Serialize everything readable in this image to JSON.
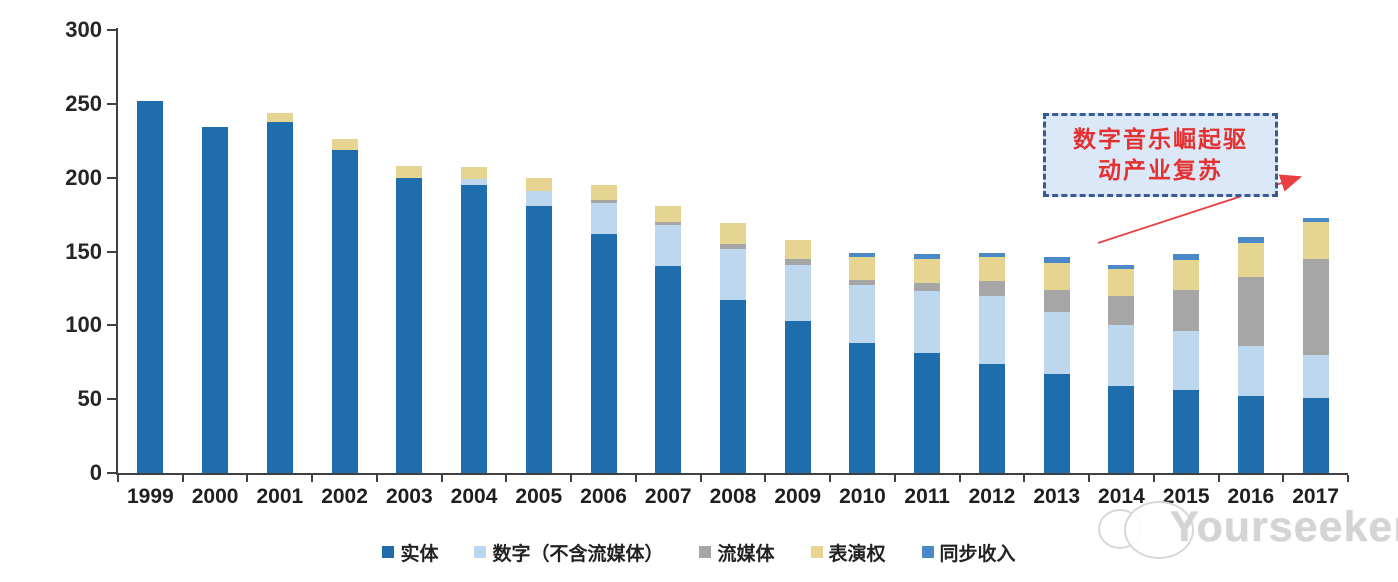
{
  "watermark": {
    "text": "Yourseeker",
    "logo_icon": "chat-bubbles-logo"
  },
  "annotation": {
    "line1": "数字音乐崛起驱",
    "line2": "动产业复苏",
    "text_color": "#e43030",
    "box_fill": "#dbe8f7",
    "box_border_color": "#3a5a96",
    "arrow_color": "#e84040"
  },
  "chart_data": {
    "type": "bar",
    "stacked": true,
    "title": "",
    "xlabel": "",
    "ylabel": "",
    "ylim": [
      0,
      300
    ],
    "yticks": [
      0,
      50,
      100,
      150,
      200,
      250,
      300
    ],
    "grid": false,
    "legend_position": "bottom",
    "categories": [
      "1999",
      "2000",
      "2001",
      "2002",
      "2003",
      "2004",
      "2005",
      "2006",
      "2007",
      "2008",
      "2009",
      "2010",
      "2011",
      "2012",
      "2013",
      "2014",
      "2015",
      "2016",
      "2017"
    ],
    "series": [
      {
        "name": "实体",
        "color": "#1f6dad",
        "values": [
          252,
          234,
          238,
          219,
          200,
          195,
          181,
          162,
          140,
          117,
          103,
          88,
          81,
          74,
          67,
          59,
          56,
          52,
          51
        ]
      },
      {
        "name": "数字（不含流媒体）",
        "color": "#bdd7ee",
        "values": [
          0,
          0,
          0,
          0,
          0,
          4,
          10,
          21,
          28,
          35,
          38,
          39,
          42,
          46,
          42,
          41,
          40,
          34,
          29
        ]
      },
      {
        "name": "流媒体",
        "color": "#a6a6a6",
        "values": [
          0,
          0,
          0,
          0,
          0,
          0,
          0,
          2,
          2,
          3,
          4,
          4,
          6,
          10,
          15,
          20,
          28,
          47,
          65
        ]
      },
      {
        "name": "表演权",
        "color": "#e6d491",
        "values": [
          0,
          0,
          6,
          7,
          8,
          8,
          9,
          10,
          11,
          14,
          13,
          15,
          16,
          16,
          18,
          18,
          20,
          23,
          25
        ]
      },
      {
        "name": "同步收入",
        "color": "#4a89c8",
        "values": [
          0,
          0,
          0,
          0,
          0,
          0,
          0,
          0,
          0,
          0,
          0,
          3,
          3,
          3,
          4,
          3,
          4,
          4,
          3
        ]
      }
    ],
    "totals": [
      252,
      234,
      244,
      226,
      208,
      207,
      200,
      195,
      181,
      169,
      158,
      149,
      148,
      149,
      146,
      141,
      148,
      160,
      173
    ]
  }
}
